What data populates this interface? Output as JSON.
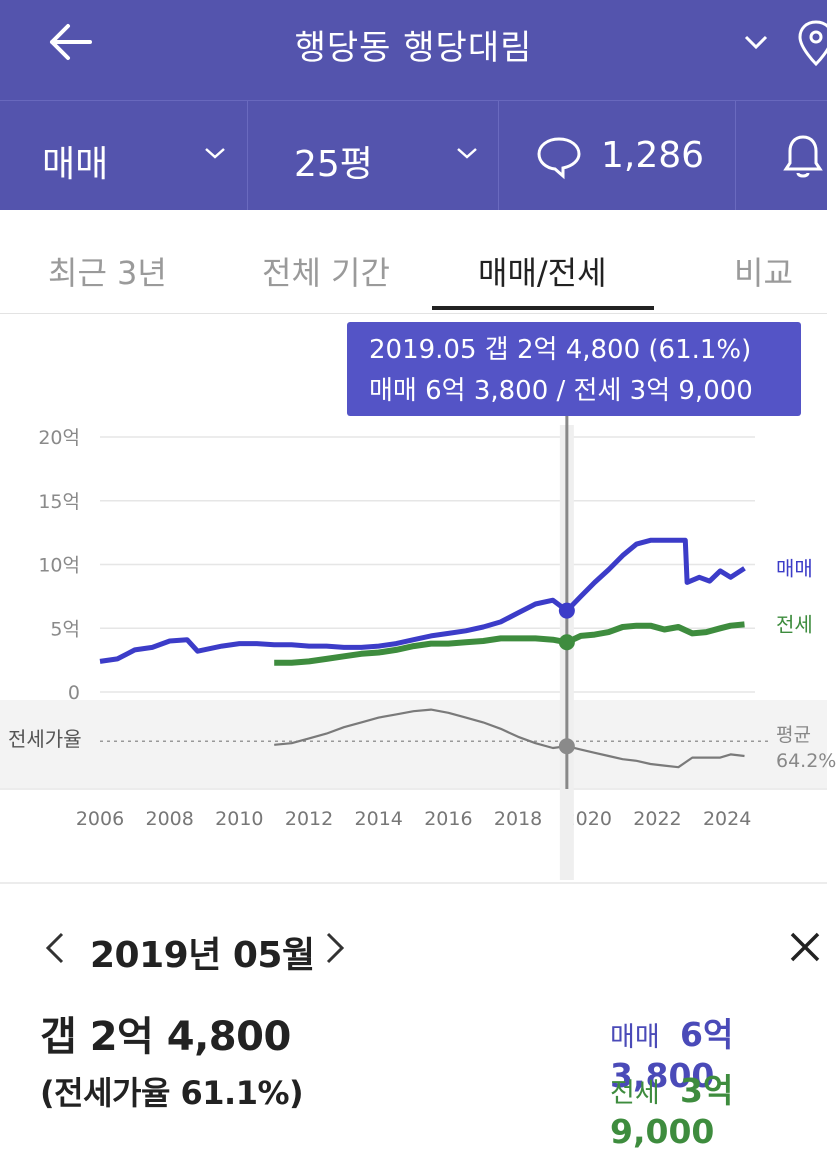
{
  "header": {
    "title": "행당동 행당대림",
    "back_icon": "arrow-left-icon",
    "dropdown_icon": "chevron-down-icon",
    "location_icon": "map-pin-icon",
    "background": "#5454ad"
  },
  "filters": {
    "deal_type": "매매",
    "size": "25평",
    "comment_count": "1,286",
    "comment_icon": "speech-bubble-icon",
    "bell_icon": "bell-icon"
  },
  "tabs": [
    {
      "label": "최근 3년",
      "active": false
    },
    {
      "label": "전체 기간",
      "active": false
    },
    {
      "label": "매매/전세",
      "active": true
    },
    {
      "label": "비교",
      "active": false
    }
  ],
  "tooltip": {
    "line1": "2019.05  갭 2억 4,800 (61.1%)",
    "line2": "매매 6억 3,800 / 전세 3억 9,000",
    "background": "#5454c6"
  },
  "chart_data": {
    "type": "line",
    "xlim": [
      2006,
      2024.8
    ],
    "ylim": [
      0,
      20
    ],
    "x_ticks": [
      "2006",
      "2008",
      "2010",
      "2012",
      "2014",
      "2016",
      "2018",
      "2020",
      "2022",
      "2024"
    ],
    "y_ticks": [
      "20억",
      "15억",
      "10억",
      "5억",
      "0"
    ],
    "sub_axis_label": "전세가율",
    "avg_label_line1": "평균",
    "avg_label_line2": "64.2%",
    "selected_x": 2019.4,
    "series": [
      {
        "name": "매매",
        "color": "#3c3cc8",
        "x": [
          2006.0,
          2006.5,
          2007.0,
          2007.5,
          2008.0,
          2008.5,
          2008.8,
          2009.5,
          2010.0,
          2010.5,
          2011.0,
          2011.5,
          2012.0,
          2012.5,
          2013.0,
          2013.5,
          2014.0,
          2014.5,
          2015.0,
          2015.5,
          2016.0,
          2016.5,
          2017.0,
          2017.5,
          2018.0,
          2018.5,
          2019.0,
          2019.4,
          2019.8,
          2020.2,
          2020.6,
          2021.0,
          2021.4,
          2021.8,
          2022.2,
          2022.6,
          2022.8,
          2022.85,
          2023.2,
          2023.5,
          2023.8,
          2024.1,
          2024.5
        ],
        "y": [
          2.4,
          2.6,
          3.3,
          3.5,
          4.0,
          4.1,
          3.2,
          3.6,
          3.8,
          3.8,
          3.7,
          3.7,
          3.6,
          3.6,
          3.5,
          3.5,
          3.6,
          3.8,
          4.1,
          4.4,
          4.6,
          4.8,
          5.1,
          5.5,
          6.2,
          6.9,
          7.2,
          6.38,
          7.5,
          8.6,
          9.6,
          10.7,
          11.6,
          11.9,
          11.9,
          11.9,
          11.9,
          8.6,
          9.0,
          8.7,
          9.5,
          9.0,
          9.7
        ]
      },
      {
        "name": "전세",
        "color": "#3e8c3e",
        "x": [
          2011.0,
          2011.5,
          2012.0,
          2012.5,
          2013.0,
          2013.5,
          2014.0,
          2014.5,
          2015.0,
          2015.5,
          2016.0,
          2016.5,
          2017.0,
          2017.5,
          2018.0,
          2018.5,
          2019.0,
          2019.4,
          2019.8,
          2020.2,
          2020.6,
          2021.0,
          2021.4,
          2021.8,
          2022.2,
          2022.6,
          2023.0,
          2023.4,
          2023.8,
          2024.1,
          2024.5
        ],
        "y": [
          2.3,
          2.3,
          2.4,
          2.6,
          2.8,
          3.0,
          3.1,
          3.3,
          3.6,
          3.8,
          3.8,
          3.9,
          4.0,
          4.2,
          4.2,
          4.2,
          4.1,
          3.9,
          4.4,
          4.5,
          4.7,
          5.1,
          5.2,
          5.2,
          4.9,
          5.1,
          4.6,
          4.7,
          5.0,
          5.2,
          5.3
        ]
      },
      {
        "name": "전세가율",
        "color": "#7a7a7a",
        "unit": "%",
        "x": [
          2011.0,
          2011.5,
          2012.0,
          2012.5,
          2013.0,
          2013.5,
          2014.0,
          2014.5,
          2015.0,
          2015.5,
          2016.0,
          2016.5,
          2017.0,
          2017.5,
          2018.0,
          2018.5,
          2019.0,
          2019.4,
          2019.8,
          2020.2,
          2020.6,
          2021.0,
          2021.4,
          2021.8,
          2022.2,
          2022.6,
          2023.0,
          2023.4,
          2023.8,
          2024.1,
          2024.5
        ],
        "y": [
          62,
          63,
          66,
          69,
          73,
          76,
          79,
          81,
          83,
          84,
          82,
          79,
          76,
          72,
          67,
          63,
          60,
          61.1,
          59,
          57,
          55,
          53,
          52,
          50,
          49,
          48,
          54,
          54,
          54,
          56,
          55
        ]
      }
    ]
  },
  "detail": {
    "month": "2019년 05월",
    "prev_icon": "chevron-left-icon",
    "next_icon": "chevron-right-icon",
    "close_icon": "close-icon",
    "gap": "갭 2억 4,800",
    "ratio": "(전세가율 61.1%)",
    "sale_label": "매매",
    "sale_value": "6억 3,800",
    "jeonse_label": "전세",
    "jeonse_value": "3억 9,000"
  }
}
